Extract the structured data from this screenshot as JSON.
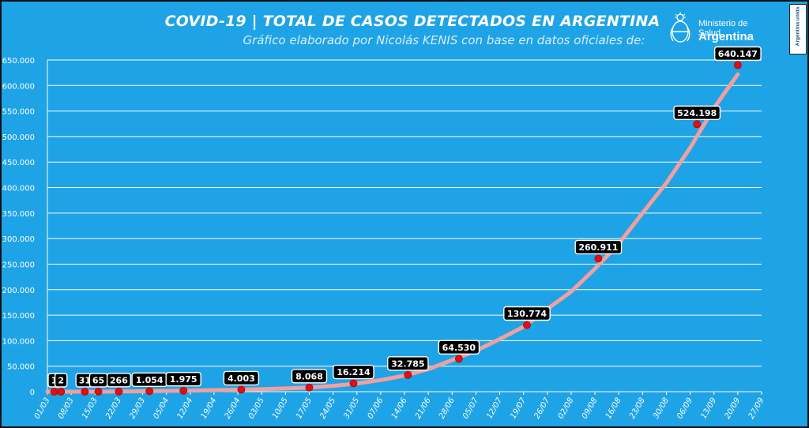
{
  "header": {
    "title": "COVID-19  |  TOTAL DE CASOS DETECTADOS EN ARGENTINA",
    "subtitle": "Gráfico elaborado por Nicolás KENIS con base en datos oficiales de:",
    "ministry_line1": "Ministerio de Salud",
    "ministry_line2": "Argentina",
    "badge": "Argentina unida",
    "emblem_icon": "argentina-coat-of-arms-icon"
  },
  "colors": {
    "background": "#1ea3e6",
    "line": "#f0a0a0",
    "marker": "#e01010",
    "label_box": "#000000",
    "grid": "#ffffff"
  },
  "chart_data": {
    "type": "line",
    "title": "COVID-19  |  TOTAL DE CASOS DETECTADOS EN ARGENTINA",
    "subtitle": "Gráfico elaborado por Nicolás KENIS con base en datos oficiales de:",
    "xlabel": "",
    "ylabel": "",
    "ylim": [
      0,
      650000
    ],
    "grid": true,
    "yticks": [
      0,
      50000,
      100000,
      150000,
      200000,
      250000,
      300000,
      350000,
      400000,
      450000,
      500000,
      550000,
      600000,
      650000
    ],
    "ytick_labels": [
      "0",
      "50.000",
      "100.000",
      "150.000",
      "200.000",
      "250.000",
      "300.000",
      "350.000",
      "400.000",
      "450.000",
      "500.000",
      "550.000",
      "600.000",
      "650.000"
    ],
    "xtick_labels": [
      "01/03",
      "08/03",
      "15/03",
      "22/03",
      "29/03",
      "05/04",
      "12/04",
      "19/04",
      "26/04",
      "03/05",
      "10/05",
      "17/05",
      "24/05",
      "31/05",
      "07/06",
      "14/06",
      "21/06",
      "28/06",
      "05/07",
      "12/07",
      "19/07",
      "26/07",
      "02/08",
      "09/08",
      "16/08",
      "23/08",
      "30/08",
      "06/09",
      "13/09",
      "20/09",
      "27/09"
    ],
    "x_start": "2020-03-01",
    "x_end": "2020-09-27",
    "series": [
      {
        "name": "",
        "x": [
          "2020-03-01",
          "2020-03-08",
          "2020-03-15",
          "2020-03-22",
          "2020-03-29",
          "2020-04-05",
          "2020-04-12",
          "2020-04-19",
          "2020-04-26",
          "2020-05-03",
          "2020-05-10",
          "2020-05-17",
          "2020-05-24",
          "2020-05-31",
          "2020-06-07",
          "2020-06-14",
          "2020-06-21",
          "2020-06-28",
          "2020-07-05",
          "2020-07-12",
          "2020-07-19",
          "2020-07-26",
          "2020-08-02",
          "2020-08-09",
          "2020-08-16",
          "2020-08-23",
          "2020-08-30",
          "2020-09-06",
          "2020-09-13",
          "2020-09-20"
        ],
        "values": [
          0,
          12,
          56,
          266,
          820,
          1600,
          2200,
          3000,
          3800,
          4800,
          6300,
          8000,
          11400,
          16000,
          22800,
          31500,
          44000,
          62000,
          80000,
          103000,
          127000,
          162000,
          196000,
          241000,
          290000,
          350000,
          409000,
          478000,
          556000,
          622000
        ]
      }
    ],
    "annotations": [
      {
        "x": "2020-03-03",
        "value": 1,
        "label": "1"
      },
      {
        "x": "2020-03-05",
        "value": 2,
        "label": "2"
      },
      {
        "x": "2020-03-12",
        "value": 31,
        "label": "31"
      },
      {
        "x": "2020-03-16",
        "value": 65,
        "label": "65"
      },
      {
        "x": "2020-03-22",
        "value": 266,
        "label": "266"
      },
      {
        "x": "2020-03-31",
        "value": 1054,
        "label": "1.054"
      },
      {
        "x": "2020-04-10",
        "value": 1975,
        "label": "1.975"
      },
      {
        "x": "2020-04-27",
        "value": 4003,
        "label": "4.003"
      },
      {
        "x": "2020-05-17",
        "value": 8068,
        "label": "8.068"
      },
      {
        "x": "2020-05-30",
        "value": 16214,
        "label": "16.214"
      },
      {
        "x": "2020-06-15",
        "value": 32785,
        "label": "32.785"
      },
      {
        "x": "2020-06-30",
        "value": 64530,
        "label": "64.530"
      },
      {
        "x": "2020-07-20",
        "value": 130774,
        "label": "130.774"
      },
      {
        "x": "2020-08-10",
        "value": 260911,
        "label": "260.911"
      },
      {
        "x": "2020-09-08",
        "value": 524198,
        "label": "524.198"
      },
      {
        "x": "2020-09-20",
        "value": 640147,
        "label": "640.147"
      }
    ]
  }
}
